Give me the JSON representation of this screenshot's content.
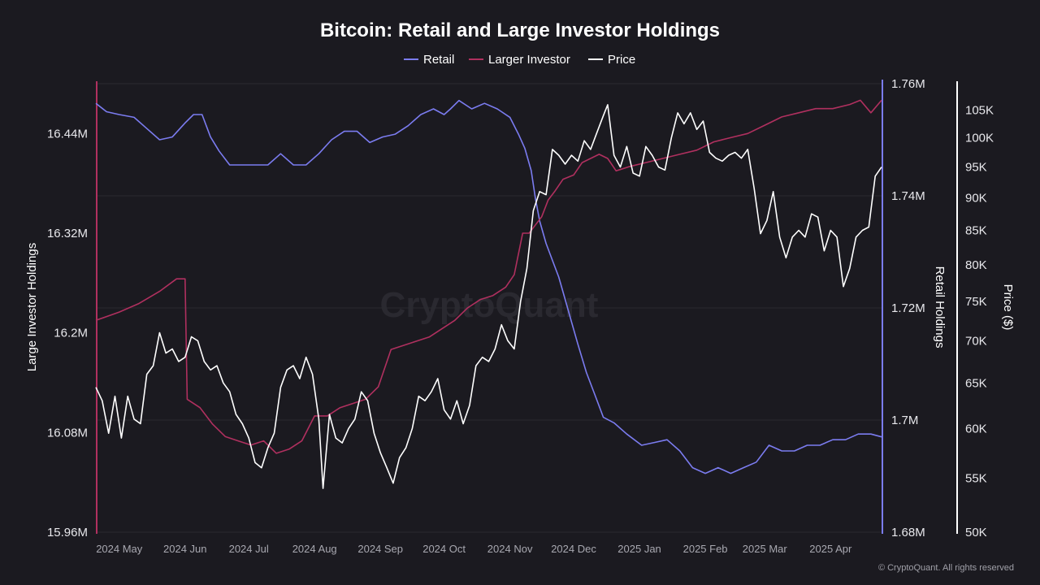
{
  "chart_data": {
    "type": "line",
    "title": "Bitcoin: Retail and Large Investor Holdings",
    "legend": {
      "placement": "top-center",
      "items": [
        {
          "label": "Retail",
          "color": "#7b7cf0"
        },
        {
          "label": "Larger Investor",
          "color": "#b0305f"
        },
        {
          "label": "Price",
          "color": "#ffffff"
        }
      ]
    },
    "x_ticks": [
      "2024 May",
      "2024 Jun",
      "2024 Jul",
      "2024 Aug",
      "2024 Sep",
      "2024 Oct",
      "2024 Nov",
      "2024 Dec",
      "2025 Jan",
      "2025 Feb",
      "2025 Mar",
      "2025 Apr"
    ],
    "x_range": [
      "2024-04-20",
      "2025-04-25"
    ],
    "left_axis": {
      "label": "Large Investor Holdings",
      "range": [
        15.96,
        16.5
      ],
      "ticks": [
        {
          "value": 15.96,
          "label": "15.96M"
        },
        {
          "value": 16.08,
          "label": "16.08M"
        },
        {
          "value": 16.2,
          "label": "16.2M"
        },
        {
          "value": 16.32,
          "label": "16.32M"
        },
        {
          "value": 16.44,
          "label": "16.44M"
        }
      ]
    },
    "middle_axis": {
      "label": "Retail Holdings",
      "range": [
        1.68,
        1.76
      ],
      "ticks": [
        {
          "value": 1.68,
          "label": "1.68M"
        },
        {
          "value": 1.7,
          "label": "1.7M"
        },
        {
          "value": 1.72,
          "label": "1.72M"
        },
        {
          "value": 1.74,
          "label": "1.74M"
        },
        {
          "value": 1.76,
          "label": "1.76M"
        }
      ]
    },
    "right_axis": {
      "label": "Price ($)",
      "range": [
        50000,
        110000
      ],
      "log": true,
      "ticks": [
        {
          "value": 50000,
          "label": "50K"
        },
        {
          "value": 55000,
          "label": "55K"
        },
        {
          "value": 60000,
          "label": "60K"
        },
        {
          "value": 65000,
          "label": "65K"
        },
        {
          "value": 70000,
          "label": "70K"
        },
        {
          "value": 75000,
          "label": "75K"
        },
        {
          "value": 80000,
          "label": "80K"
        },
        {
          "value": 85000,
          "label": "85K"
        },
        {
          "value": 90000,
          "label": "90K"
        },
        {
          "value": 95000,
          "label": "95K"
        },
        {
          "value": 100000,
          "label": "100K"
        },
        {
          "value": 105000,
          "label": "105K"
        }
      ]
    },
    "grid": true,
    "series": [
      {
        "name": "Retail",
        "axis": "middle",
        "color": "#7b7cf0",
        "dates": [
          "2024-04-20",
          "2024-04-25",
          "2024-05-01",
          "2024-05-08",
          "2024-05-14",
          "2024-05-20",
          "2024-05-26",
          "2024-06-01",
          "2024-06-05",
          "2024-06-09",
          "2024-06-13",
          "2024-06-17",
          "2024-06-22",
          "2024-06-28",
          "2024-07-04",
          "2024-07-10",
          "2024-07-16",
          "2024-07-22",
          "2024-07-28",
          "2024-08-03",
          "2024-08-09",
          "2024-08-15",
          "2024-08-21",
          "2024-08-27",
          "2024-09-02",
          "2024-09-08",
          "2024-09-14",
          "2024-09-20",
          "2024-09-26",
          "2024-10-01",
          "2024-10-04",
          "2024-10-08",
          "2024-10-14",
          "2024-10-20",
          "2024-10-26",
          "2024-11-01",
          "2024-11-05",
          "2024-11-08",
          "2024-11-11",
          "2024-11-13",
          "2024-11-15",
          "2024-11-18",
          "2024-11-21",
          "2024-11-24",
          "2024-11-27",
          "2024-11-30",
          "2024-12-03",
          "2024-12-07",
          "2024-12-11",
          "2024-12-15",
          "2024-12-20",
          "2024-12-26",
          "2025-01-02",
          "2025-01-08",
          "2025-01-14",
          "2025-01-20",
          "2025-01-26",
          "2025-02-01",
          "2025-02-07",
          "2025-02-13",
          "2025-02-19",
          "2025-02-25",
          "2025-03-03",
          "2025-03-09",
          "2025-03-15",
          "2025-03-21",
          "2025-03-27",
          "2025-04-02",
          "2025-04-08",
          "2025-04-14",
          "2025-04-20",
          "2025-04-25"
        ],
        "values": [
          1.7565,
          1.755,
          1.7545,
          1.754,
          1.752,
          1.75,
          1.7505,
          1.753,
          1.7545,
          1.7545,
          1.7505,
          1.748,
          1.7455,
          1.7455,
          1.7455,
          1.7455,
          1.7475,
          1.7455,
          1.7455,
          1.7475,
          1.75,
          1.7515,
          1.7515,
          1.7495,
          1.7505,
          1.751,
          1.7525,
          1.7545,
          1.7555,
          1.7545,
          1.7555,
          1.757,
          1.7555,
          1.7565,
          1.7555,
          1.754,
          1.751,
          1.7485,
          1.7445,
          1.7395,
          1.7355,
          1.7315,
          1.7285,
          1.7255,
          1.7215,
          1.7175,
          1.7135,
          1.7085,
          1.7045,
          1.7005,
          1.6995,
          1.6975,
          1.6955,
          1.696,
          1.6965,
          1.6945,
          1.6915,
          1.6905,
          1.6915,
          1.6905,
          1.6915,
          1.6925,
          1.6955,
          1.6945,
          1.6945,
          1.6955,
          1.6955,
          1.6965,
          1.6965,
          1.6975,
          1.6975,
          1.697
        ]
      },
      {
        "name": "Larger Investor",
        "axis": "left",
        "color": "#b0305f",
        "dates": [
          "2024-04-20",
          "2024-05-01",
          "2024-05-10",
          "2024-05-20",
          "2024-05-28",
          "2024-06-01",
          "2024-06-02",
          "2024-06-08",
          "2024-06-14",
          "2024-06-20",
          "2024-06-26",
          "2024-07-02",
          "2024-07-08",
          "2024-07-14",
          "2024-07-20",
          "2024-07-26",
          "2024-08-01",
          "2024-08-07",
          "2024-08-13",
          "2024-08-19",
          "2024-08-25",
          "2024-08-31",
          "2024-09-06",
          "2024-09-12",
          "2024-09-18",
          "2024-09-24",
          "2024-09-30",
          "2024-10-06",
          "2024-10-12",
          "2024-10-18",
          "2024-10-24",
          "2024-10-30",
          "2024-11-03",
          "2024-11-07",
          "2024-11-10",
          "2024-11-13",
          "2024-11-16",
          "2024-11-19",
          "2024-11-22",
          "2024-11-26",
          "2024-12-01",
          "2024-12-05",
          "2024-12-09",
          "2024-12-13",
          "2024-12-17",
          "2024-12-21",
          "2024-12-27",
          "2025-01-04",
          "2025-01-12",
          "2025-01-20",
          "2025-01-28",
          "2025-02-05",
          "2025-02-13",
          "2025-02-21",
          "2025-03-01",
          "2025-03-09",
          "2025-03-17",
          "2025-03-25",
          "2025-04-02",
          "2025-04-10",
          "2025-04-15",
          "2025-04-20",
          "2025-04-25"
        ],
        "values": [
          16.215,
          16.225,
          16.235,
          16.25,
          16.265,
          16.265,
          16.12,
          16.11,
          16.09,
          16.075,
          16.07,
          16.065,
          16.07,
          16.055,
          16.06,
          16.07,
          16.1,
          16.1,
          16.11,
          16.115,
          16.12,
          16.135,
          16.18,
          16.185,
          16.19,
          16.195,
          16.205,
          16.215,
          16.23,
          16.24,
          16.245,
          16.255,
          16.27,
          16.32,
          16.32,
          16.33,
          16.34,
          16.36,
          16.37,
          16.385,
          16.39,
          16.405,
          16.41,
          16.415,
          16.41,
          16.395,
          16.4,
          16.405,
          16.41,
          16.415,
          16.42,
          16.43,
          16.435,
          16.44,
          16.45,
          16.46,
          16.465,
          16.47,
          16.47,
          16.475,
          16.48,
          16.465,
          16.48
        ]
      },
      {
        "name": "Price",
        "axis": "right",
        "color": "#ffffff",
        "dates": [
          "2024-04-20",
          "2024-04-23",
          "2024-04-26",
          "2024-04-29",
          "2024-05-02",
          "2024-05-05",
          "2024-05-08",
          "2024-05-11",
          "2024-05-14",
          "2024-05-17",
          "2024-05-20",
          "2024-05-23",
          "2024-05-26",
          "2024-05-29",
          "2024-06-01",
          "2024-06-04",
          "2024-06-07",
          "2024-06-10",
          "2024-06-13",
          "2024-06-16",
          "2024-06-19",
          "2024-06-22",
          "2024-06-25",
          "2024-06-28",
          "2024-07-01",
          "2024-07-04",
          "2024-07-07",
          "2024-07-10",
          "2024-07-13",
          "2024-07-16",
          "2024-07-19",
          "2024-07-22",
          "2024-07-25",
          "2024-07-28",
          "2024-07-31",
          "2024-08-03",
          "2024-08-05",
          "2024-08-08",
          "2024-08-11",
          "2024-08-14",
          "2024-08-17",
          "2024-08-20",
          "2024-08-23",
          "2024-08-26",
          "2024-08-29",
          "2024-09-01",
          "2024-09-04",
          "2024-09-07",
          "2024-09-10",
          "2024-09-13",
          "2024-09-16",
          "2024-09-19",
          "2024-09-22",
          "2024-09-25",
          "2024-09-28",
          "2024-10-01",
          "2024-10-04",
          "2024-10-07",
          "2024-10-10",
          "2024-10-13",
          "2024-10-16",
          "2024-10-19",
          "2024-10-22",
          "2024-10-25",
          "2024-10-28",
          "2024-10-31",
          "2024-11-03",
          "2024-11-06",
          "2024-11-09",
          "2024-11-12",
          "2024-11-15",
          "2024-11-18",
          "2024-11-21",
          "2024-11-24",
          "2024-11-27",
          "2024-11-30",
          "2024-12-03",
          "2024-12-06",
          "2024-12-09",
          "2024-12-12",
          "2024-12-15",
          "2024-12-17",
          "2024-12-20",
          "2024-12-23",
          "2024-12-26",
          "2024-12-29",
          "2025-01-01",
          "2025-01-04",
          "2025-01-07",
          "2025-01-10",
          "2025-01-13",
          "2025-01-16",
          "2025-01-19",
          "2025-01-22",
          "2025-01-25",
          "2025-01-28",
          "2025-01-31",
          "2025-02-03",
          "2025-02-06",
          "2025-02-09",
          "2025-02-12",
          "2025-02-15",
          "2025-02-18",
          "2025-02-21",
          "2025-02-24",
          "2025-02-27",
          "2025-03-02",
          "2025-03-05",
          "2025-03-08",
          "2025-03-11",
          "2025-03-14",
          "2025-03-17",
          "2025-03-20",
          "2025-03-23",
          "2025-03-26",
          "2025-03-29",
          "2025-04-01",
          "2025-04-04",
          "2025-04-07",
          "2025-04-10",
          "2025-04-13",
          "2025-04-16",
          "2025-04-19",
          "2025-04-22",
          "2025-04-25"
        ],
        "values": [
          64500,
          63000,
          59500,
          63500,
          59000,
          63500,
          61000,
          60500,
          66000,
          67000,
          71000,
          68500,
          69000,
          67500,
          68000,
          70500,
          70000,
          67500,
          66500,
          67000,
          65000,
          64000,
          61500,
          60500,
          59000,
          56500,
          56000,
          58000,
          59500,
          64500,
          66500,
          67000,
          65500,
          68000,
          66000,
          61000,
          54000,
          61500,
          59000,
          58500,
          60000,
          61000,
          64000,
          63000,
          59500,
          57500,
          56000,
          54500,
          57000,
          58000,
          60000,
          63500,
          63000,
          64000,
          65500,
          62000,
          61000,
          63000,
          60500,
          62500,
          67000,
          68000,
          67500,
          69000,
          72000,
          70000,
          69000,
          75000,
          79500,
          88000,
          91000,
          90500,
          98000,
          97000,
          95500,
          97000,
          96000,
          99500,
          98000,
          101000,
          104000,
          106000,
          97000,
          95000,
          98500,
          94000,
          93500,
          98500,
          97000,
          95000,
          94500,
          100000,
          104500,
          102500,
          104500,
          101500,
          103000,
          97500,
          96500,
          96000,
          97000,
          97500,
          96500,
          98000,
          91500,
          84500,
          86500,
          91000,
          84000,
          81000,
          84000,
          85000,
          84000,
          87500,
          87000,
          82000,
          85000,
          84000,
          77000,
          79500,
          84000,
          85000,
          85500,
          93500,
          95000
        ]
      }
    ]
  },
  "watermark": "CryptoQuant",
  "copyright": "© CryptoQuant. All rights reserved"
}
